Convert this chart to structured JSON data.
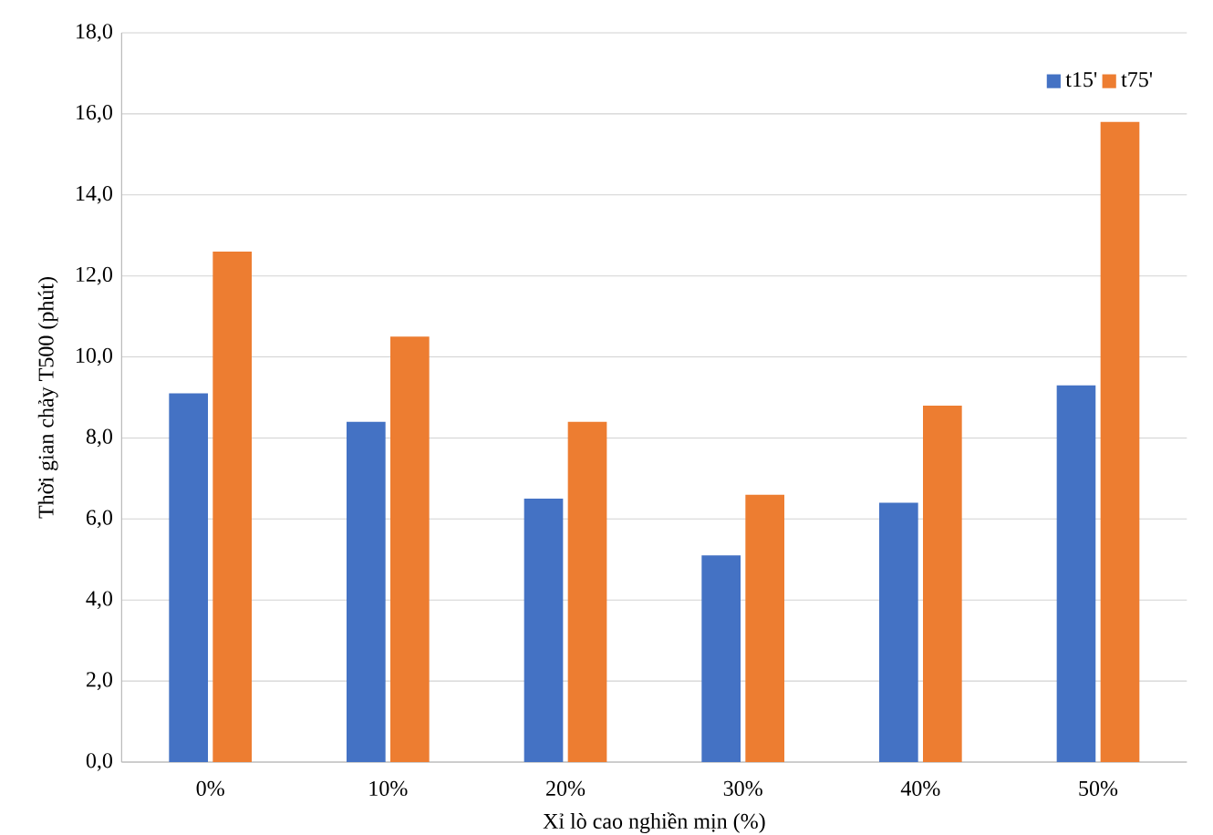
{
  "chart_data": {
    "type": "bar",
    "xlabel": "Xỉ lò cao nghiền mịn (%)",
    "ylabel": "Thời gian chảy T500 (phút)",
    "categories": [
      "0%",
      "10%",
      "20%",
      "30%",
      "40%",
      "50%"
    ],
    "series": [
      {
        "name": "t15'",
        "color": "#4472c4",
        "values": [
          9.1,
          8.4,
          6.5,
          5.1,
          6.4,
          9.3
        ]
      },
      {
        "name": "t75'",
        "color": "#ed7d31",
        "values": [
          12.6,
          10.5,
          8.4,
          6.6,
          8.8,
          15.8
        ]
      }
    ],
    "ylim": [
      0,
      18
    ],
    "yticks": [
      {
        "value": 0,
        "label": "0,0"
      },
      {
        "value": 2,
        "label": "2,0"
      },
      {
        "value": 4,
        "label": "4,0"
      },
      {
        "value": 6,
        "label": "6,0"
      },
      {
        "value": 8,
        "label": "8,0"
      },
      {
        "value": 10,
        "label": "10,0"
      },
      {
        "value": 12,
        "label": "12,0"
      },
      {
        "value": 14,
        "label": "14,0"
      },
      {
        "value": 16,
        "label": "16,0"
      },
      {
        "value": 18,
        "label": "18,0"
      }
    ],
    "grid": "y",
    "legend": "top right"
  }
}
